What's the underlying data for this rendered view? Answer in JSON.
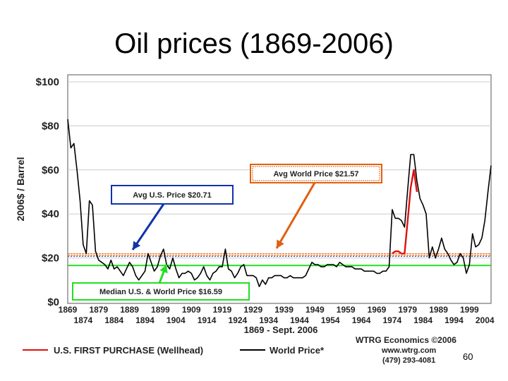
{
  "slide": {
    "title": "Oil prices (1869-2006)",
    "page_number": "60"
  },
  "chart_data": {
    "type": "line",
    "ylabel": "2006$ / Barrel",
    "xlabel": "1869 - Sept. 2006",
    "xlim": [
      1869,
      2006
    ],
    "ylim": [
      0,
      100
    ],
    "y_ticks": [
      "$0",
      "$20",
      "$40",
      "$60",
      "$80",
      "$100"
    ],
    "y_tick_values": [
      0,
      20,
      40,
      60,
      80,
      100
    ],
    "x_ticks_row1": [
      "1869",
      "1879",
      "1889",
      "1899",
      "1909",
      "1919",
      "1929",
      "1939",
      "1949",
      "1959",
      "1969",
      "1979",
      "1989",
      "1999"
    ],
    "x_ticks_row1_values": [
      1869,
      1879,
      1889,
      1899,
      1909,
      1919,
      1929,
      1939,
      1949,
      1959,
      1969,
      1979,
      1989,
      1999
    ],
    "x_ticks_row2": [
      "1874",
      "1884",
      "1894",
      "1904",
      "1914",
      "1924",
      "1934",
      "1944",
      "1954",
      "1964",
      "1974",
      "1984",
      "1994",
      "2004"
    ],
    "x_ticks_row2_values": [
      1874,
      1884,
      1894,
      1904,
      1914,
      1924,
      1934,
      1944,
      1954,
      1964,
      1974,
      1984,
      1994,
      2004
    ],
    "series": [
      {
        "name": "World Price*",
        "color": "#000000",
        "points": [
          [
            1869,
            83
          ],
          [
            1870,
            70
          ],
          [
            1871,
            72
          ],
          [
            1872,
            60
          ],
          [
            1873,
            46
          ],
          [
            1874,
            26
          ],
          [
            1875,
            22
          ],
          [
            1876,
            46
          ],
          [
            1877,
            44
          ],
          [
            1878,
            23
          ],
          [
            1879,
            19
          ],
          [
            1880,
            18
          ],
          [
            1881,
            17
          ],
          [
            1882,
            15
          ],
          [
            1883,
            19
          ],
          [
            1884,
            15
          ],
          [
            1885,
            16
          ],
          [
            1886,
            14
          ],
          [
            1887,
            12
          ],
          [
            1888,
            15
          ],
          [
            1889,
            18
          ],
          [
            1890,
            16
          ],
          [
            1891,
            12
          ],
          [
            1892,
            10
          ],
          [
            1893,
            12
          ],
          [
            1894,
            14
          ],
          [
            1895,
            22
          ],
          [
            1896,
            18
          ],
          [
            1897,
            14
          ],
          [
            1898,
            16
          ],
          [
            1899,
            21
          ],
          [
            1900,
            24
          ],
          [
            1901,
            17
          ],
          [
            1902,
            15
          ],
          [
            1903,
            20
          ],
          [
            1904,
            15
          ],
          [
            1905,
            11
          ],
          [
            1906,
            13
          ],
          [
            1907,
            13
          ],
          [
            1908,
            14
          ],
          [
            1909,
            13
          ],
          [
            1910,
            10
          ],
          [
            1911,
            11
          ],
          [
            1912,
            13
          ],
          [
            1913,
            16
          ],
          [
            1914,
            12
          ],
          [
            1915,
            10
          ],
          [
            1916,
            13
          ],
          [
            1917,
            14
          ],
          [
            1918,
            16
          ],
          [
            1919,
            16
          ],
          [
            1920,
            24
          ],
          [
            1921,
            15
          ],
          [
            1922,
            14
          ],
          [
            1923,
            11
          ],
          [
            1924,
            13
          ],
          [
            1925,
            16
          ],
          [
            1926,
            17
          ],
          [
            1927,
            12
          ],
          [
            1928,
            12
          ],
          [
            1929,
            12
          ],
          [
            1930,
            11
          ],
          [
            1931,
            7
          ],
          [
            1932,
            10
          ],
          [
            1933,
            8
          ],
          [
            1934,
            11
          ],
          [
            1935,
            11
          ],
          [
            1936,
            12
          ],
          [
            1937,
            12
          ],
          [
            1938,
            12
          ],
          [
            1939,
            11
          ],
          [
            1940,
            11
          ],
          [
            1941,
            12
          ],
          [
            1942,
            11
          ],
          [
            1943,
            11
          ],
          [
            1944,
            11
          ],
          [
            1945,
            11
          ],
          [
            1946,
            12
          ],
          [
            1947,
            15
          ],
          [
            1948,
            18
          ],
          [
            1949,
            17
          ],
          [
            1950,
            17
          ],
          [
            1951,
            16
          ],
          [
            1952,
            16
          ],
          [
            1953,
            17
          ],
          [
            1954,
            17
          ],
          [
            1955,
            17
          ],
          [
            1956,
            16
          ],
          [
            1957,
            18
          ],
          [
            1958,
            17
          ],
          [
            1959,
            16
          ],
          [
            1960,
            16
          ],
          [
            1961,
            16
          ],
          [
            1962,
            15
          ],
          [
            1963,
            15
          ],
          [
            1964,
            15
          ],
          [
            1965,
            14
          ],
          [
            1966,
            14
          ],
          [
            1967,
            14
          ],
          [
            1968,
            14
          ],
          [
            1969,
            13
          ],
          [
            1970,
            13
          ],
          [
            1971,
            14
          ],
          [
            1972,
            14
          ],
          [
            1973,
            16
          ],
          [
            1974,
            42
          ],
          [
            1975,
            38
          ],
          [
            1976,
            38
          ],
          [
            1977,
            37
          ],
          [
            1978,
            34
          ],
          [
            1979,
            51
          ],
          [
            1980,
            67
          ],
          [
            1981,
            67
          ],
          [
            1982,
            55
          ],
          [
            1983,
            47
          ],
          [
            1984,
            44
          ],
          [
            1985,
            40
          ],
          [
            1986,
            20
          ],
          [
            1987,
            25
          ],
          [
            1988,
            20
          ],
          [
            1989,
            24
          ],
          [
            1990,
            29
          ],
          [
            1991,
            24
          ],
          [
            1992,
            22
          ],
          [
            1993,
            19
          ],
          [
            1994,
            17
          ],
          [
            1995,
            18
          ],
          [
            1996,
            22
          ],
          [
            1997,
            20
          ],
          [
            1998,
            13
          ],
          [
            1999,
            17
          ],
          [
            2000,
            31
          ],
          [
            2001,
            25
          ],
          [
            2002,
            26
          ],
          [
            2003,
            29
          ],
          [
            2004,
            37
          ],
          [
            2005,
            50
          ],
          [
            2006,
            62
          ]
        ]
      },
      {
        "name": "U.S. FIRST PURCHASE (Wellhead)",
        "color": "#dd1111",
        "points": [
          [
            1974,
            22
          ],
          [
            1975,
            23
          ],
          [
            1976,
            23
          ],
          [
            1977,
            22
          ],
          [
            1978,
            22
          ],
          [
            1979,
            37
          ],
          [
            1980,
            52
          ],
          [
            1981,
            60
          ],
          [
            1982,
            50
          ]
        ]
      }
    ],
    "reference_lines": [
      {
        "name": "Avg World Price",
        "value": 21.57,
        "color": "#e06010"
      },
      {
        "name": "Avg U.S. Price",
        "value": 20.71,
        "color": "#1133aa"
      },
      {
        "name": "Median U.S. & World Price",
        "value": 16.59,
        "color": "#22dd22"
      }
    ],
    "annotations": [
      {
        "text": "Avg  World Price  $21.57",
        "color": "#e06010"
      },
      {
        "text": "Avg  U.S. Price  $20.71",
        "color": "#1133aa"
      },
      {
        "text": "Median U.S. & World Price $16.59",
        "color": "#22dd22"
      }
    ],
    "legend": {
      "placement": "bottom-left",
      "items": [
        {
          "label": "U.S. FIRST PURCHASE (Wellhead)",
          "color": "#dd1111"
        },
        {
          "label": "World Price*",
          "color": "#000000"
        }
      ]
    },
    "credit": [
      "WTRG Economics  ©2006",
      "www.wtrg.com",
      "(479) 293-4081"
    ]
  }
}
